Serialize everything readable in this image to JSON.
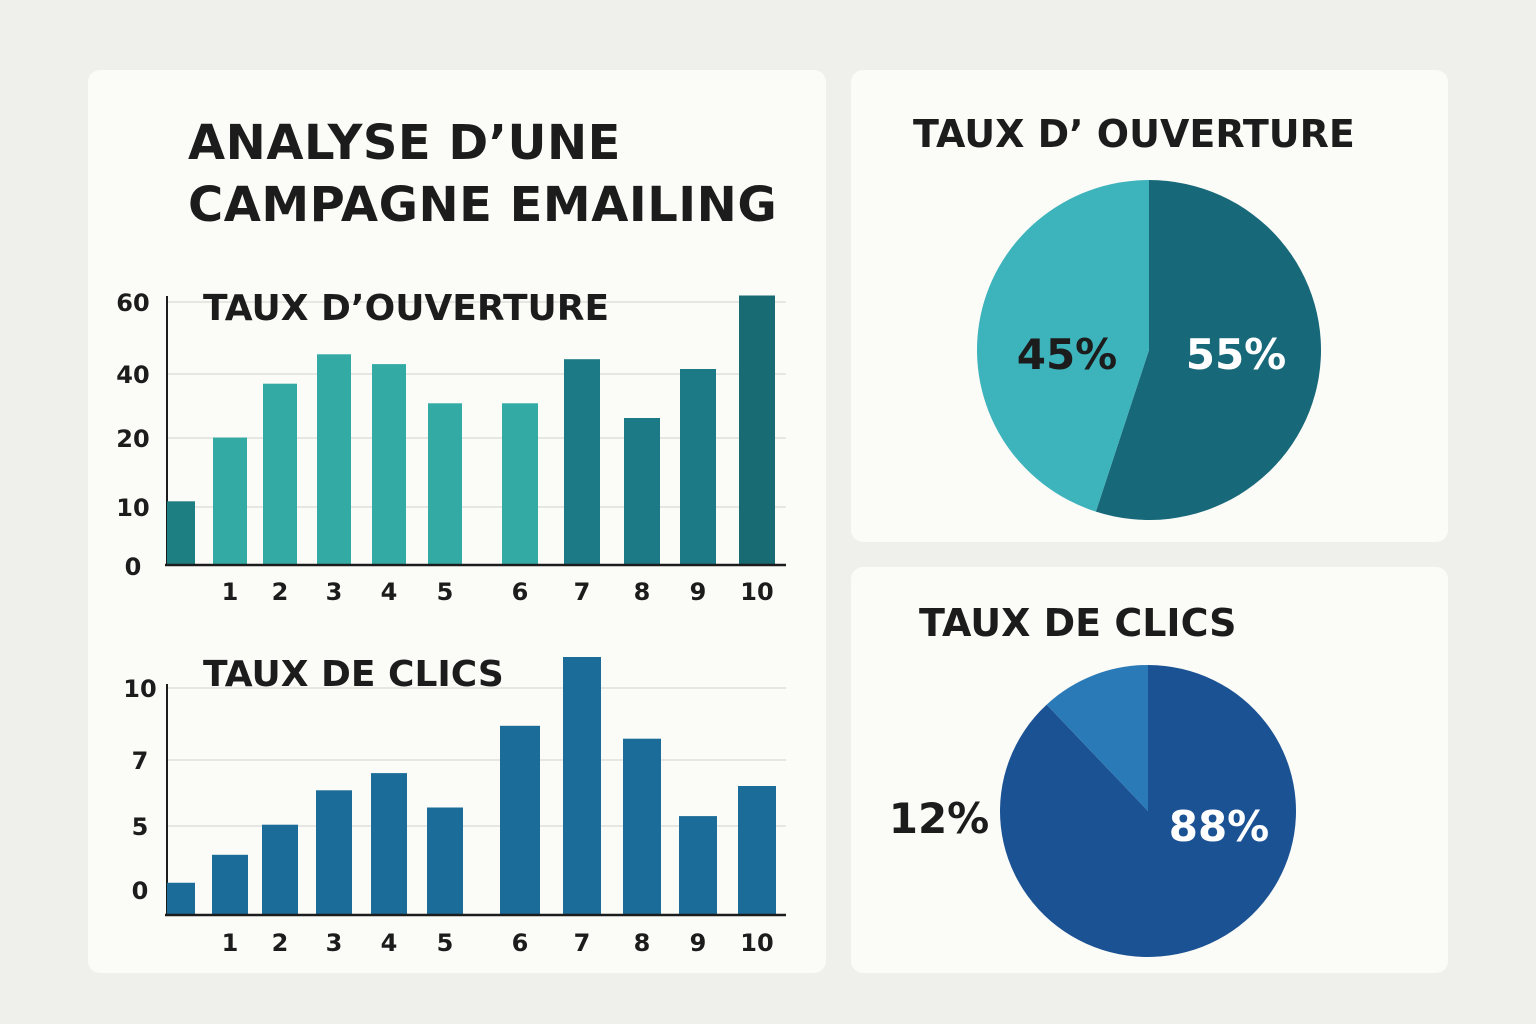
{
  "title_line1": "ANALYSE D’UNE",
  "title_line2": "CAMPAGNE EMAILING",
  "chart_data": [
    {
      "type": "bar",
      "title": "TAUX D’OUVERTURE",
      "categories": [
        "1",
        "2",
        "3",
        "4",
        "5",
        "6",
        "7",
        "8",
        "9",
        "10"
      ],
      "y_ticks": [
        "0",
        "10",
        "20",
        "40",
        "60"
      ],
      "extra_bar_before_first": 13,
      "values": [
        26,
        37,
        43,
        41,
        33,
        33,
        42,
        30,
        40,
        55
      ],
      "colors": [
        "#33aba4",
        "#33aba4",
        "#33aba4",
        "#33aba4",
        "#33aba4",
        "#33aba4",
        "#1b7a86",
        "#1b7a86",
        "#1b7a86",
        "#186b72"
      ],
      "extra_bar_color": "#1e7f83",
      "grid": true
    },
    {
      "type": "bar",
      "title": "TAUX DE CLICS",
      "categories": [
        "1",
        "2",
        "3",
        "4",
        "5",
        "6",
        "7",
        "8",
        "9",
        "10"
      ],
      "y_ticks": [
        "0",
        "5",
        "7",
        "10"
      ],
      "extra_bar_before_first": 1.5,
      "values": [
        2.8,
        4.2,
        5.8,
        6.6,
        5.0,
        8.8,
        12.0,
        8.2,
        4.6,
        6.0
      ],
      "colors": [
        "#1b6c99",
        "#1b6c99",
        "#1b6c99",
        "#1b6c99",
        "#1b6c99",
        "#1b6c99",
        "#1b6c99",
        "#1b6c99",
        "#1b6c99",
        "#1b6c99"
      ],
      "extra_bar_color": "#1b6c99",
      "grid": true
    },
    {
      "type": "pie",
      "title": "TAUX D’ OUVERTURE",
      "slices": [
        {
          "label": "45%",
          "value": 45,
          "color": "#3db3bb"
        },
        {
          "label": "55%",
          "value": 55,
          "color": "#176879"
        }
      ]
    },
    {
      "type": "pie",
      "title": "TAUX DE CLICS",
      "slices": [
        {
          "label": "12%",
          "value": 12,
          "color": "#2a7ab8"
        },
        {
          "label": "88%",
          "value": 88,
          "color": "#1b5294"
        }
      ]
    }
  ]
}
